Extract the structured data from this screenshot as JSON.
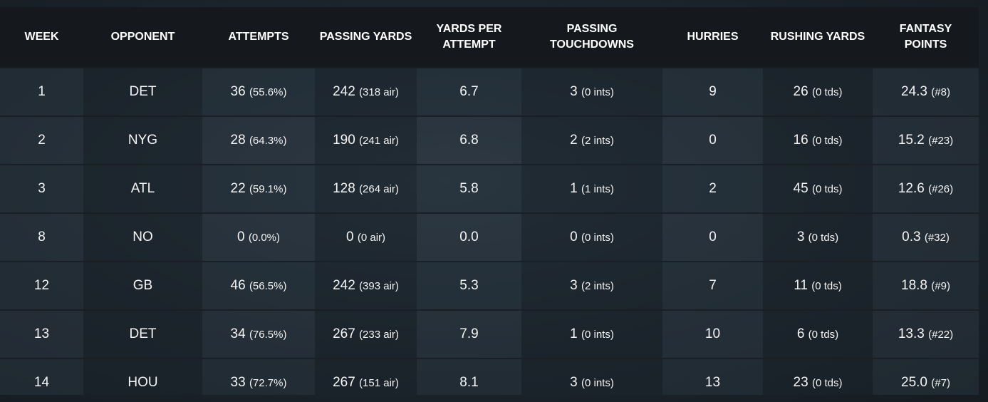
{
  "table": {
    "headers": [
      "WEEK",
      "OPPONENT",
      "ATTEMPTS",
      "PASSING YARDS",
      "YARDS PER ATTEMPT",
      "PASSING TOUCHDOWNS",
      "HURRIES",
      "RUSHING YARDS",
      "FANTASY POINTS"
    ],
    "rows": [
      {
        "week": "1",
        "opponent": "DET",
        "attempts": "36",
        "attempts_sub": "(55.6%)",
        "pass_yds": "242",
        "pass_yds_sub": "(318 air)",
        "ypa": "6.7",
        "pass_td": "3",
        "pass_td_sub": "(0 ints)",
        "hurries": "9",
        "rush_yds": "26",
        "rush_yds_sub": "(0 tds)",
        "fantasy": "24.3",
        "fantasy_sub": "(#8)"
      },
      {
        "week": "2",
        "opponent": "NYG",
        "attempts": "28",
        "attempts_sub": "(64.3%)",
        "pass_yds": "190",
        "pass_yds_sub": "(241 air)",
        "ypa": "6.8",
        "pass_td": "2",
        "pass_td_sub": "(2 ints)",
        "hurries": "0",
        "rush_yds": "16",
        "rush_yds_sub": "(0 tds)",
        "fantasy": "15.2",
        "fantasy_sub": "(#23)"
      },
      {
        "week": "3",
        "opponent": "ATL",
        "attempts": "22",
        "attempts_sub": "(59.1%)",
        "pass_yds": "128",
        "pass_yds_sub": "(264 air)",
        "ypa": "5.8",
        "pass_td": "1",
        "pass_td_sub": "(1 ints)",
        "hurries": "2",
        "rush_yds": "45",
        "rush_yds_sub": "(0 tds)",
        "fantasy": "12.6",
        "fantasy_sub": "(#26)"
      },
      {
        "week": "8",
        "opponent": "NO",
        "attempts": "0",
        "attempts_sub": "(0.0%)",
        "pass_yds": "0",
        "pass_yds_sub": "(0 air)",
        "ypa": "0.0",
        "pass_td": "0",
        "pass_td_sub": "(0 ints)",
        "hurries": "0",
        "rush_yds": "3",
        "rush_yds_sub": "(0 tds)",
        "fantasy": "0.3",
        "fantasy_sub": "(#32)"
      },
      {
        "week": "12",
        "opponent": "GB",
        "attempts": "46",
        "attempts_sub": "(56.5%)",
        "pass_yds": "242",
        "pass_yds_sub": "(393 air)",
        "ypa": "5.3",
        "pass_td": "3",
        "pass_td_sub": "(2 ints)",
        "hurries": "7",
        "rush_yds": "11",
        "rush_yds_sub": "(0 tds)",
        "fantasy": "18.8",
        "fantasy_sub": "(#9)"
      },
      {
        "week": "13",
        "opponent": "DET",
        "attempts": "34",
        "attempts_sub": "(76.5%)",
        "pass_yds": "267",
        "pass_yds_sub": "(233 air)",
        "ypa": "7.9",
        "pass_td": "1",
        "pass_td_sub": "(0 ints)",
        "hurries": "10",
        "rush_yds": "6",
        "rush_yds_sub": "(0 tds)",
        "fantasy": "13.3",
        "fantasy_sub": "(#22)"
      },
      {
        "week": "14",
        "opponent": "HOU",
        "attempts": "33",
        "attempts_sub": "(72.7%)",
        "pass_yds": "267",
        "pass_yds_sub": "(151 air)",
        "ypa": "8.1",
        "pass_td": "3",
        "pass_td_sub": "(0 ints)",
        "hurries": "13",
        "rush_yds": "23",
        "rush_yds_sub": "(0 tds)",
        "fantasy": "25.0",
        "fantasy_sub": "(#7)"
      }
    ]
  }
}
